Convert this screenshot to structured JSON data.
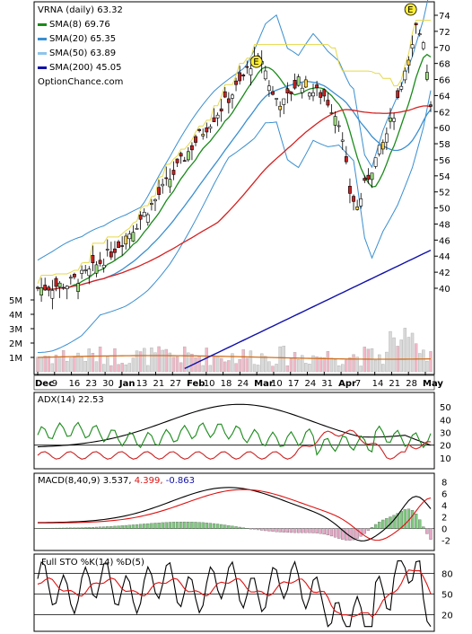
{
  "main": {
    "title": "VRNA (daily) 63.32",
    "watermark": "OptionChance.com",
    "legend": [
      {
        "label": "SMA(8) 69.76",
        "color": "#1a8a1a"
      },
      {
        "label": "SMA(20) 65.35",
        "color": "#3a8fd0"
      },
      {
        "label": "SMA(50) 63.89",
        "color": "#8ec5ea"
      },
      {
        "label": "SMA(200) 45.05",
        "color": "#1010aa"
      }
    ],
    "earnings_marker": "E",
    "price_ticks": [
      "74",
      "72",
      "70",
      "68",
      "66",
      "64",
      "62",
      "60",
      "58",
      "56",
      "54",
      "52",
      "50",
      "48",
      "46",
      "44",
      "42",
      "40"
    ],
    "volume_ticks": [
      "5M",
      "4M",
      "3M",
      "2M",
      "1M"
    ],
    "date_labels": [
      "Dec",
      "9",
      "16",
      "23",
      "30",
      "Jan",
      "13",
      "21",
      "27",
      "Feb",
      "10",
      "18",
      "24",
      "Mar",
      "10",
      "17",
      "24",
      "31",
      "Apr",
      "7",
      "14",
      "21",
      "28",
      "May"
    ]
  },
  "adx": {
    "title": "ADX(14) 22.53",
    "ticks": [
      "50",
      "40",
      "30",
      "20",
      "10"
    ],
    "colors": {
      "adx": "#000000",
      "plus_di": "#1a8a1a",
      "minus_di": "#cc2222"
    }
  },
  "macd": {
    "title_prefix": "MACD(8,40,9) 3.537,",
    "signal_value": "4.399,",
    "hist_value": "-0.863",
    "ticks": [
      "8",
      "6",
      "4",
      "2",
      "0",
      "-2"
    ],
    "colors": {
      "macd": "#000000",
      "signal": "#dd1111",
      "hist_pos": "#7fc97f",
      "hist_neg": "#e8a8c8"
    }
  },
  "sto": {
    "title": "Full STO %K(14) %D(5)",
    "ticks": [
      "80",
      "50",
      "20"
    ],
    "colors": {
      "k": "#000000",
      "d": "#dd1111"
    }
  },
  "chart_data": [
    {
      "type": "candlestick",
      "title": "VRNA (daily) 63.32",
      "ylim": [
        38,
        75
      ],
      "sessions": [
        "Dec 2",
        "Dec 9",
        "Dec 16",
        "Dec 23",
        "Dec 30",
        "Jan 6",
        "Jan 13",
        "Jan 21",
        "Jan 27",
        "Feb 3",
        "Feb 10",
        "Feb 18",
        "Feb 24",
        "Mar 3",
        "Mar 10",
        "Mar 17",
        "Mar 24",
        "Mar 31",
        "Apr 7",
        "Apr 14",
        "Apr 21",
        "Apr 28",
        "May 5"
      ],
      "weekly_close": [
        40.2,
        40.5,
        41.5,
        43.5,
        46.0,
        49.0,
        52.0,
        56.5,
        60.0,
        63.5,
        66.0,
        67.0,
        68.5,
        63.0,
        63.5,
        65.0,
        64.0,
        59.0,
        52.0,
        57.0,
        62.0,
        72.5,
        63.3
      ],
      "series": [
        {
          "name": "SMA(8) 69.76",
          "last": 69.76
        },
        {
          "name": "SMA(20) 65.35",
          "last": 65.35
        },
        {
          "name": "SMA(50) 63.89",
          "last": 63.89
        },
        {
          "name": "SMA(200) 45.05",
          "last": 45.05
        }
      ],
      "volume_ylim": [
        0,
        5500000
      ]
    },
    {
      "type": "line",
      "title": "ADX(14) 22.53",
      "ylim": [
        5,
        58
      ],
      "last": {
        "ADX": 22.53
      }
    },
    {
      "type": "line",
      "title": "MACD(8,40,9) 3.537, 4.399, -0.863",
      "ylim": [
        -3,
        9
      ],
      "last": {
        "MACD": 3.537,
        "Signal": 4.399,
        "Histogram": -0.863
      }
    },
    {
      "type": "line",
      "title": "Full STO %K(14) %D(5)",
      "ylim": [
        0,
        100
      ],
      "levels": [
        20,
        50,
        80
      ]
    }
  ]
}
